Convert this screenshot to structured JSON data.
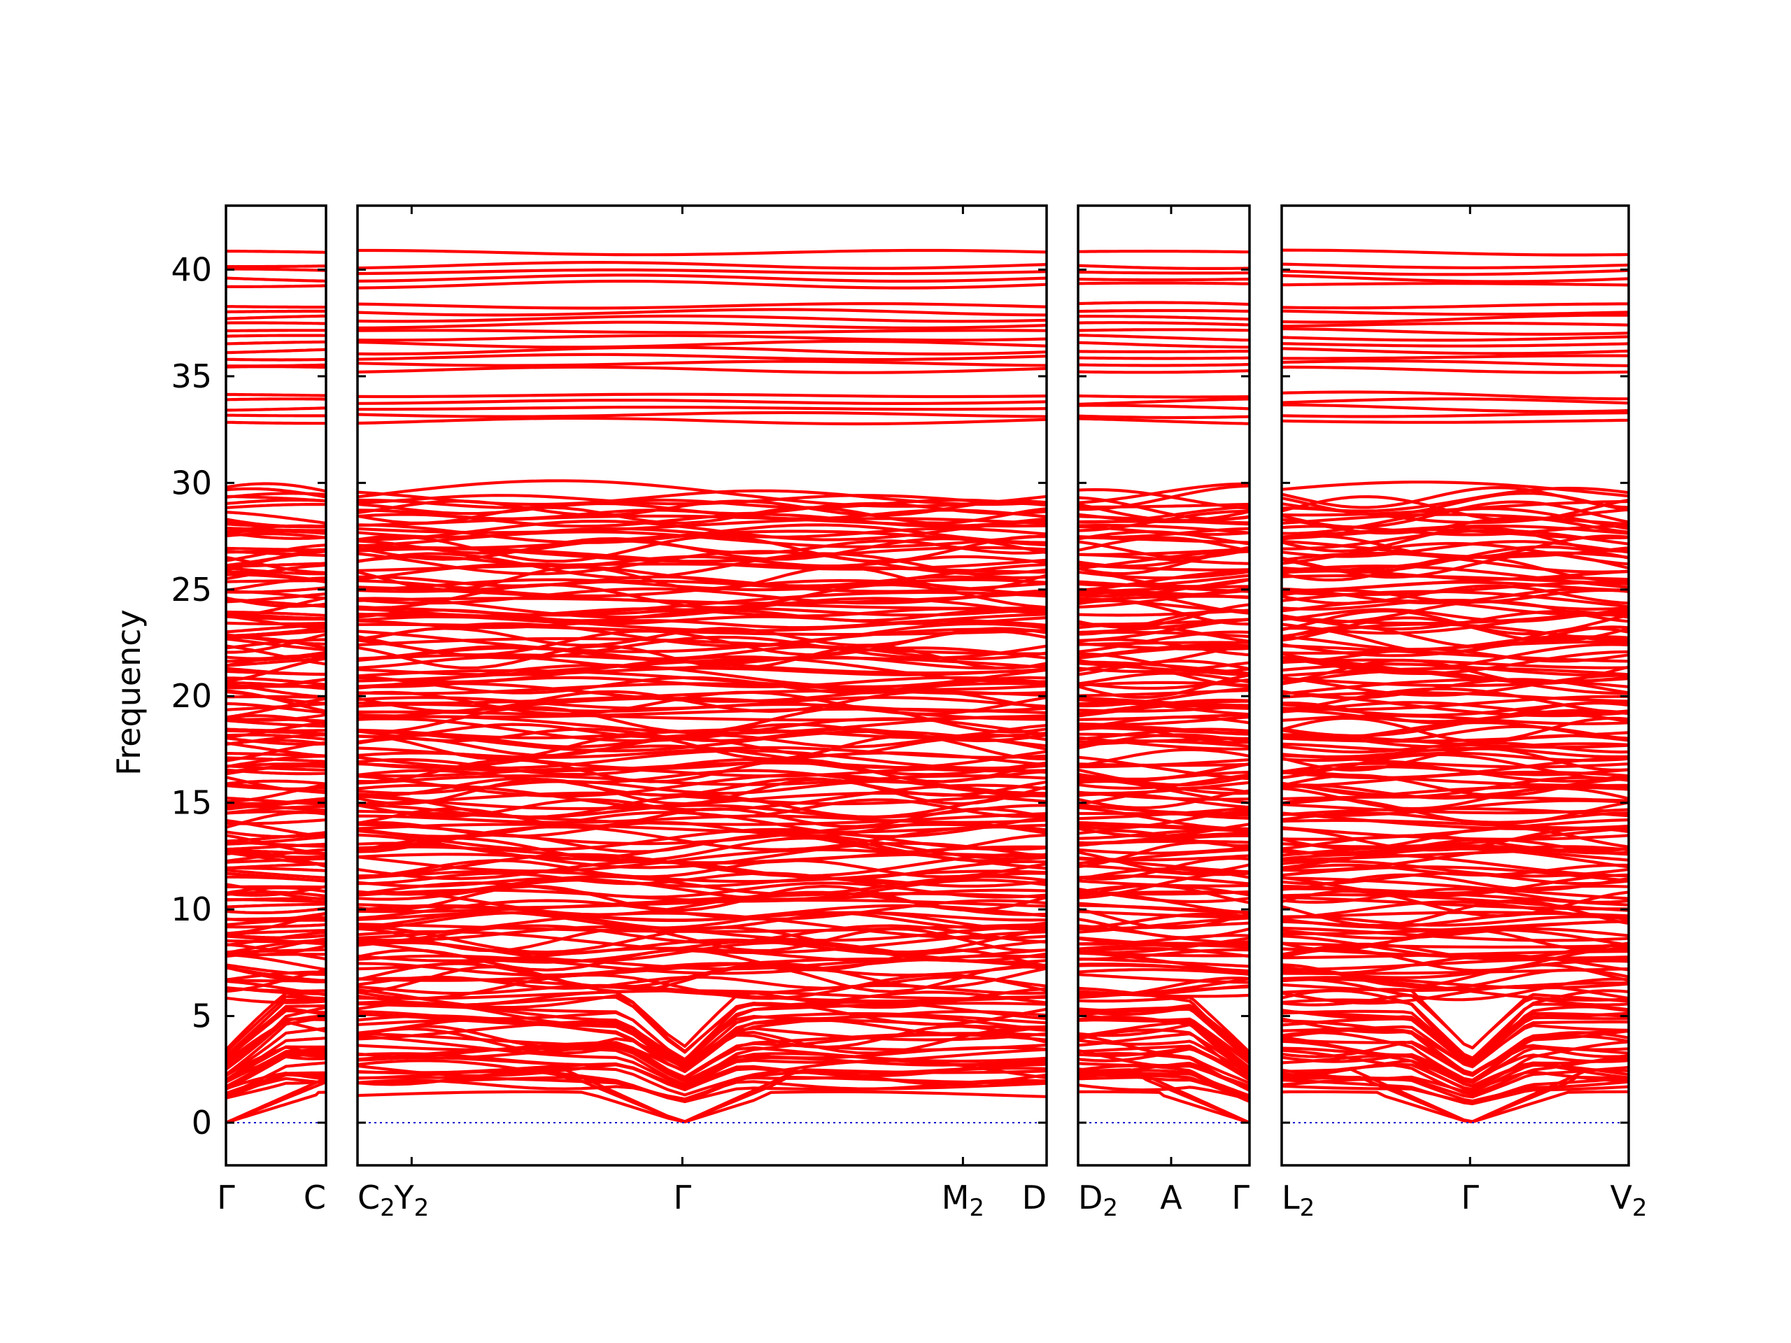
{
  "chart_data": {
    "type": "line",
    "title": "",
    "xlabel": "",
    "ylabel": "Frequency",
    "ylim": [
      -2,
      43
    ],
    "yticks": [
      0,
      5,
      10,
      15,
      20,
      25,
      30,
      35,
      40
    ],
    "grid": false,
    "legend": "none",
    "colors": {
      "bands": "#ff0000",
      "zero_line": "#0000cc",
      "frame": "#000000"
    },
    "panels": [
      {
        "xrange": [
          0,
          1
        ],
        "points": [
          {
            "x": 0,
            "label": "Γ"
          },
          {
            "x": 1,
            "label": "C"
          }
        ]
      },
      {
        "xrange": [
          0,
          7
        ],
        "points": [
          {
            "x": 0,
            "label": "C",
            "sub": "2"
          },
          {
            "x": 0.55,
            "label": "Y",
            "sub": "2"
          },
          {
            "x": 3.3,
            "label": "Γ"
          },
          {
            "x": 6.15,
            "label": "M",
            "sub": "2"
          },
          {
            "x": 7,
            "label": "D"
          }
        ]
      },
      {
        "xrange": [
          0,
          1.75
        ],
        "points": [
          {
            "x": 0,
            "label": "D",
            "sub": "2"
          },
          {
            "x": 0.95,
            "label": "A"
          },
          {
            "x": 1.75,
            "label": "Γ"
          }
        ]
      },
      {
        "xrange": [
          0,
          3.5
        ],
        "points": [
          {
            "x": 0,
            "label": "L",
            "sub": "2"
          },
          {
            "x": 1.9,
            "label": "Γ"
          },
          {
            "x": 3.5,
            "label": "V",
            "sub": "2"
          }
        ]
      }
    ],
    "band_structure": {
      "num_bands": 210,
      "frequency_min": 0,
      "frequency_max": 40.8,
      "gaps": [
        [
          29.7,
          32.9
        ],
        [
          34.2,
          35.3
        ]
      ],
      "upper_band_levels": [
        32.9,
        33.2,
        33.5,
        33.8,
        34.1,
        35.3,
        35.6,
        35.9,
        36.2,
        36.5,
        36.8,
        37.1,
        37.4,
        37.7,
        38.0,
        38.3,
        39.3,
        39.6,
        39.9,
        40.2,
        40.8
      ]
    }
  }
}
